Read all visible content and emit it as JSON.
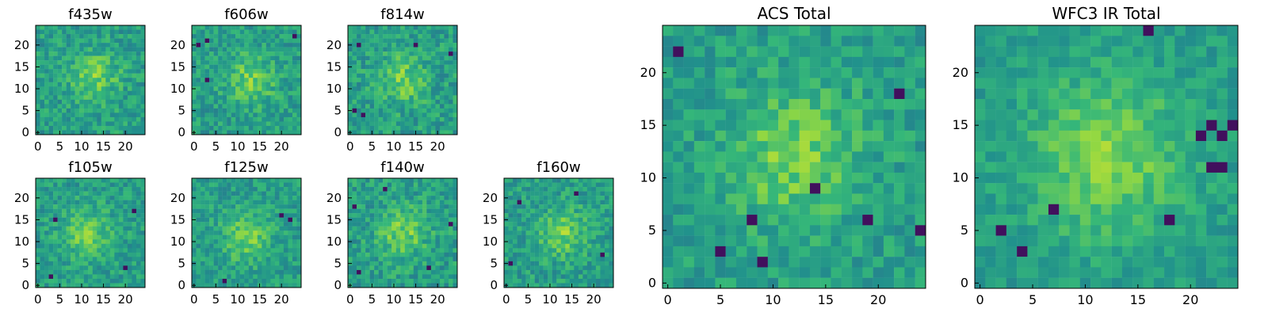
{
  "figure": {
    "description_colors": {
      "colormap": "viridis",
      "palette": [
        "#440154",
        "#31688e",
        "#21918c",
        "#35b779",
        "#90d743",
        "#fde725"
      ]
    }
  },
  "chart_data": [
    {
      "type": "heatmap",
      "title": "f435w",
      "grid": false,
      "xlim": [
        0,
        24
      ],
      "ylim": [
        0,
        24
      ],
      "xticks": [
        0,
        5,
        10,
        15,
        20
      ],
      "yticks": [
        0,
        5,
        10,
        15,
        20
      ],
      "tick_labels_x": [
        "0",
        "5",
        "10",
        "15",
        "20"
      ],
      "tick_labels_y": [
        "0",
        "5",
        "10",
        "15",
        "20"
      ],
      "size": 25,
      "bright_spot": [
        13,
        13
      ],
      "dark_pixels": [],
      "noise": 0.32
    },
    {
      "type": "heatmap",
      "title": "f606w",
      "grid": false,
      "xlim": [
        0,
        24
      ],
      "ylim": [
        0,
        24
      ],
      "xticks": [
        0,
        5,
        10,
        15,
        20
      ],
      "yticks": [
        0,
        5,
        10,
        15,
        20
      ],
      "tick_labels_x": [
        "0",
        "5",
        "10",
        "15",
        "20"
      ],
      "tick_labels_y": [
        "0",
        "5",
        "10",
        "15",
        "20"
      ],
      "size": 25,
      "bright_spot": [
        13,
        12
      ],
      "dark_pixels": [
        [
          3,
          12
        ],
        [
          1,
          20
        ],
        [
          3,
          21
        ],
        [
          23,
          22
        ]
      ],
      "noise": 0.31
    },
    {
      "type": "heatmap",
      "title": "f814w",
      "grid": false,
      "xlim": [
        0,
        24
      ],
      "ylim": [
        0,
        24
      ],
      "xticks": [
        0,
        5,
        10,
        15,
        20
      ],
      "yticks": [
        0,
        5,
        10,
        15,
        20
      ],
      "tick_labels_x": [
        "0",
        "5",
        "10",
        "15",
        "20"
      ],
      "tick_labels_y": [
        "0",
        "5",
        "10",
        "15",
        "20"
      ],
      "size": 25,
      "bright_spot": [
        12,
        12
      ],
      "dark_pixels": [
        [
          1,
          5
        ],
        [
          2,
          20
        ],
        [
          3,
          4
        ],
        [
          15,
          20
        ],
        [
          23,
          18
        ]
      ],
      "noise": 0.33
    },
    {
      "type": "heatmap",
      "title": "f105w",
      "grid": false,
      "xlim": [
        0,
        24
      ],
      "ylim": [
        0,
        24
      ],
      "xticks": [
        0,
        5,
        10,
        15,
        20
      ],
      "yticks": [
        0,
        5,
        10,
        15,
        20
      ],
      "tick_labels_x": [
        "0",
        "5",
        "10",
        "15",
        "20"
      ],
      "tick_labels_y": [
        "0",
        "5",
        "10",
        "15",
        "20"
      ],
      "size": 25,
      "bright_spot": [
        11,
        12
      ],
      "dark_pixels": [
        [
          20,
          4
        ],
        [
          3,
          2
        ],
        [
          4,
          15
        ],
        [
          22,
          17
        ]
      ],
      "noise": 0.3
    },
    {
      "type": "heatmap",
      "title": "f125w",
      "grid": false,
      "xlim": [
        0,
        24
      ],
      "ylim": [
        0,
        24
      ],
      "xticks": [
        0,
        5,
        10,
        15,
        20
      ],
      "yticks": [
        0,
        5,
        10,
        15,
        20
      ],
      "tick_labels_x": [
        "0",
        "5",
        "10",
        "15",
        "20"
      ],
      "tick_labels_y": [
        "0",
        "5",
        "10",
        "15",
        "20"
      ],
      "size": 25,
      "bright_spot": [
        12,
        11
      ],
      "dark_pixels": [
        [
          20,
          16
        ],
        [
          22,
          15
        ],
        [
          7,
          1
        ]
      ],
      "noise": 0.29
    },
    {
      "type": "heatmap",
      "title": "f140w",
      "grid": false,
      "xlim": [
        0,
        24
      ],
      "ylim": [
        0,
        24
      ],
      "xticks": [
        0,
        5,
        10,
        15,
        20
      ],
      "yticks": [
        0,
        5,
        10,
        15,
        20
      ],
      "tick_labels_x": [
        "0",
        "5",
        "10",
        "15",
        "20"
      ],
      "tick_labels_y": [
        "0",
        "5",
        "10",
        "15",
        "20"
      ],
      "size": 25,
      "bright_spot": [
        12,
        12
      ],
      "dark_pixels": [
        [
          2,
          3
        ],
        [
          8,
          22
        ],
        [
          18,
          4
        ],
        [
          1,
          18
        ],
        [
          23,
          14
        ]
      ],
      "noise": 0.33
    },
    {
      "type": "heatmap",
      "title": "f160w",
      "grid": false,
      "xlim": [
        0,
        24
      ],
      "ylim": [
        0,
        24
      ],
      "xticks": [
        0,
        5,
        10,
        15,
        20
      ],
      "yticks": [
        0,
        5,
        10,
        15,
        20
      ],
      "tick_labels_x": [
        "0",
        "5",
        "10",
        "15",
        "20"
      ],
      "tick_labels_y": [
        "0",
        "5",
        "10",
        "15",
        "20"
      ],
      "size": 25,
      "bright_spot": [
        13,
        12
      ],
      "dark_pixels": [
        [
          1,
          5
        ],
        [
          3,
          19
        ],
        [
          22,
          7
        ],
        [
          16,
          21
        ]
      ],
      "noise": 0.31
    },
    {
      "type": "heatmap",
      "title": "ACS Total",
      "grid": false,
      "xlim": [
        0,
        24
      ],
      "ylim": [
        0,
        24
      ],
      "xticks": [
        0,
        5,
        10,
        15,
        20
      ],
      "yticks": [
        0,
        5,
        10,
        15,
        20
      ],
      "tick_labels_x": [
        "0",
        "5",
        "10",
        "15",
        "20"
      ],
      "tick_labels_y": [
        "0",
        "5",
        "10",
        "15",
        "20"
      ],
      "size": 25,
      "bright_spot": [
        12,
        12
      ],
      "dark_pixels": [
        [
          1,
          22
        ],
        [
          8,
          6
        ],
        [
          19,
          6
        ],
        [
          24,
          5
        ],
        [
          5,
          3
        ],
        [
          9,
          2
        ],
        [
          14,
          9
        ],
        [
          22,
          18
        ]
      ],
      "noise": 0.28
    },
    {
      "type": "heatmap",
      "title": "WFC3 IR Total",
      "grid": false,
      "xlim": [
        0,
        24
      ],
      "ylim": [
        0,
        24
      ],
      "xticks": [
        0,
        5,
        10,
        15,
        20
      ],
      "yticks": [
        0,
        5,
        10,
        15,
        20
      ],
      "tick_labels_x": [
        "0",
        "5",
        "10",
        "15",
        "20"
      ],
      "tick_labels_y": [
        "0",
        "5",
        "10",
        "15",
        "20"
      ],
      "size": 25,
      "bright_spot": [
        12,
        12
      ],
      "dark_pixels": [
        [
          16,
          24
        ],
        [
          22,
          15
        ],
        [
          23,
          14
        ],
        [
          24,
          15
        ],
        [
          21,
          14
        ],
        [
          7,
          7
        ],
        [
          18,
          6
        ],
        [
          22,
          11
        ],
        [
          23,
          11
        ],
        [
          2,
          5
        ],
        [
          4,
          3
        ]
      ],
      "noise": 0.22
    }
  ]
}
